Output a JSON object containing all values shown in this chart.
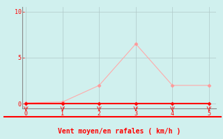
{
  "x": [
    0,
    1,
    2,
    3,
    4,
    5
  ],
  "y_rafales": [
    0.1,
    0.2,
    2.0,
    6.5,
    2.0,
    2.0
  ],
  "y_moyen": [
    0.0,
    0.0,
    0.0,
    0.0,
    0.0,
    0.0
  ],
  "xlabel": "Vent moyen/en rafales ( km/h )",
  "xlim": [
    -0.1,
    5.2
  ],
  "ylim": [
    -0.5,
    10.5
  ],
  "yticks": [
    0,
    5,
    10
  ],
  "xticks": [
    0,
    1,
    2,
    3,
    4,
    5
  ],
  "bg_color": "#d0f0ee",
  "line_color_rafales": "#ffaaaa",
  "line_color_moyen": "#ff0000",
  "marker_color_rafales": "#ff9999",
  "marker_color_moyen": "#ff0000",
  "grid_color": "#b0c8c8",
  "xlabel_color": "#ff0000",
  "tick_color": "#ff0000",
  "axis_color": "#ff0000",
  "spine_color": "#888888"
}
